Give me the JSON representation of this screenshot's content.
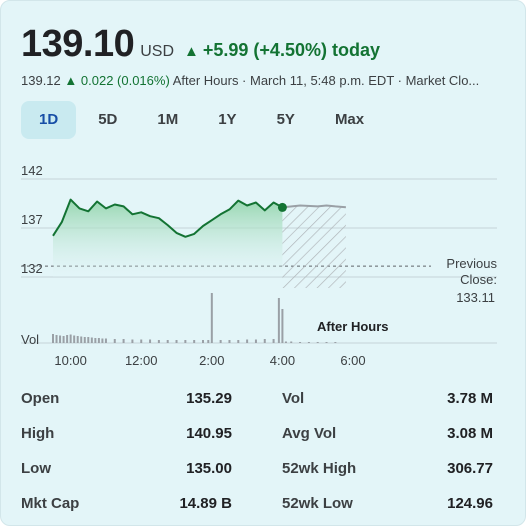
{
  "quote": {
    "price": "139.10",
    "currency": "USD",
    "arrow": "▲",
    "change": "+5.99 (+4.50%) today"
  },
  "after_hours": {
    "price": "139.12",
    "arrow": "▲",
    "change": "0.022 (0.016%)",
    "label": "After Hours · March 11, 5:48 p.m. EDT · Market Clo..."
  },
  "tabs": [
    "1D",
    "5D",
    "1M",
    "1Y",
    "5Y",
    "Max"
  ],
  "active_tab": "1D",
  "chart_labels": {
    "previous_close_label_1": "Previous",
    "previous_close_label_2": "Close:",
    "previous_close_value": "133.11",
    "vol_label": "Vol",
    "after_hours_label": "After Hours"
  },
  "chart_data": {
    "type": "area",
    "y_ticks": [
      "142",
      "137",
      "132"
    ],
    "x_ticks": [
      "10:00",
      "12:00",
      "2:00",
      "4:00",
      "6:00"
    ],
    "ylim": [
      132,
      142
    ],
    "previous_close": 133.11,
    "x_hours": [
      9.5,
      9.75,
      10.0,
      10.25,
      10.5,
      10.75,
      11.0,
      11.25,
      11.5,
      11.75,
      12.0,
      12.25,
      12.5,
      12.75,
      13.0,
      13.25,
      13.5,
      13.75,
      14.0,
      14.25,
      14.5,
      14.75,
      15.0,
      15.25,
      15.5,
      15.75,
      16.0
    ],
    "price": [
      136.2,
      137.6,
      139.9,
      139.0,
      138.7,
      139.7,
      139.0,
      139.4,
      139.2,
      138.4,
      138.6,
      138.2,
      138.0,
      137.3,
      136.5,
      136.1,
      136.4,
      137.2,
      137.8,
      138.4,
      138.9,
      139.8,
      139.3,
      139.6,
      138.8,
      139.6,
      139.1
    ],
    "after_hours": {
      "x_hours": [
        16.0,
        16.5,
        17.0,
        17.25,
        17.5,
        17.8
      ],
      "price": [
        139.1,
        139.3,
        139.2,
        139.3,
        139.2,
        139.12
      ]
    },
    "volume_x_hours": [
      9.5,
      9.6,
      9.7,
      9.8,
      9.9,
      10.0,
      10.1,
      10.2,
      10.3,
      10.4,
      10.5,
      10.6,
      10.7,
      10.8,
      10.9,
      11.0,
      11.25,
      11.5,
      11.75,
      12.0,
      12.25,
      12.5,
      12.75,
      13.0,
      13.25,
      13.5,
      13.75,
      13.9,
      14.0,
      14.25,
      14.5,
      14.75,
      15.0,
      15.25,
      15.5,
      15.75,
      15.9,
      16.0,
      16.1,
      16.25,
      16.5,
      16.75,
      17.0,
      17.25,
      17.5
    ],
    "volume_rel": [
      0.18,
      0.16,
      0.15,
      0.14,
      0.16,
      0.17,
      0.15,
      0.14,
      0.13,
      0.12,
      0.12,
      0.11,
      0.1,
      0.1,
      0.09,
      0.09,
      0.08,
      0.08,
      0.07,
      0.07,
      0.07,
      0.06,
      0.06,
      0.06,
      0.06,
      0.06,
      0.06,
      0.06,
      1.0,
      0.06,
      0.06,
      0.06,
      0.07,
      0.07,
      0.08,
      0.08,
      0.9,
      0.68,
      0.03,
      0.03,
      0.02,
      0.02,
      0.02,
      0.02,
      0.02
    ]
  },
  "stats_rows": [
    {
      "label1": "Open",
      "value1": "135.29",
      "label2": "Vol",
      "value2": "3.78 M"
    },
    {
      "label1": "High",
      "value1": "140.95",
      "label2": "Avg Vol",
      "value2": "3.08 M"
    },
    {
      "label1": "Low",
      "value1": "135.00",
      "label2": "52wk High",
      "value2": "306.77"
    },
    {
      "label1": "Mkt Cap",
      "value1": "14.89 B",
      "label2": "52wk Low",
      "value2": "124.96"
    }
  ],
  "colors": {
    "up": "#137333",
    "line": "#137333",
    "fill_top": "#8fd3a8",
    "fill_bottom": "#e3f5f8",
    "after_hours_line": "#9aa0a6",
    "grid": "#c4d4d8",
    "volume_bar": "#9aa0a6"
  }
}
